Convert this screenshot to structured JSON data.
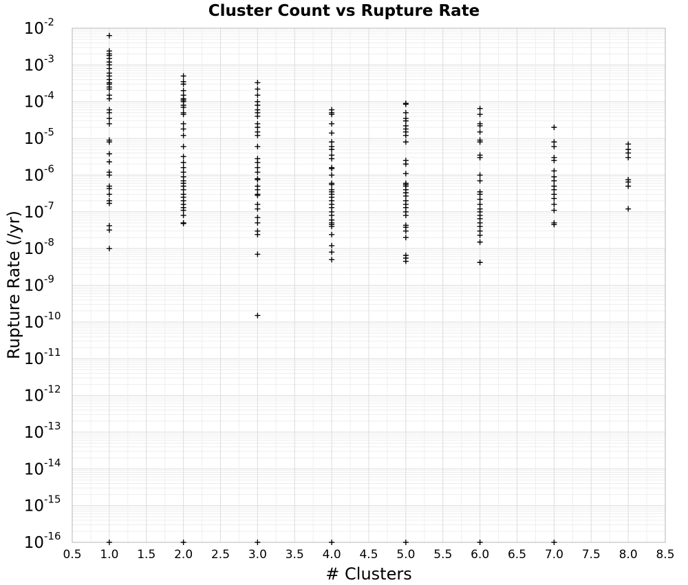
{
  "chart_data": {
    "type": "scatter",
    "title": "Cluster Count vs Rupture Rate",
    "xlabel": "# Clusters",
    "ylabel": "Rupture Rate (/yr)",
    "xlim": [
      0.5,
      8.5
    ],
    "ylim": [
      1e-16,
      0.01
    ],
    "yscale": "log",
    "grid": true,
    "marker": "+",
    "marker_color": "#000000",
    "x_ticks": [
      "0.5",
      "1.0",
      "1.5",
      "2.0",
      "2.5",
      "3.0",
      "3.5",
      "4.0",
      "4.5",
      "5.0",
      "5.5",
      "6.0",
      "6.5",
      "7.0",
      "7.5",
      "8.0",
      "8.5"
    ],
    "y_tick_base": "10",
    "y_tick_exponents": [
      "-16",
      "-15",
      "-14",
      "-13",
      "-12",
      "-11",
      "-10",
      "-9",
      "-8",
      "-7",
      "-6",
      "-5",
      "-4",
      "-3",
      "-2"
    ],
    "series": [
      {
        "x": 1,
        "values": [
          0.0063,
          0.0024,
          0.002,
          0.0018,
          0.0015,
          0.0012,
          0.001,
          0.0008,
          0.0006,
          0.0005,
          0.0004,
          0.00033,
          0.0003,
          0.00025,
          0.00022,
          0.00015,
          0.00012,
          6e-05,
          5e-05,
          3.5e-05,
          2.5e-05,
          9e-06,
          8e-06,
          3.8e-06,
          2.3e-06,
          1.2e-06,
          1e-06,
          5e-07,
          4.3e-07,
          3e-07,
          2e-07,
          1.7e-07,
          4.2e-08,
          3.2e-08,
          1e-08,
          1e-16
        ]
      },
      {
        "x": 2,
        "values": [
          0.0005,
          0.00035,
          0.0003,
          0.0002,
          0.00015,
          0.00012,
          0.00011,
          0.0001,
          8e-05,
          7e-05,
          5e-05,
          4.5e-05,
          2.5e-05,
          1.8e-05,
          1.2e-05,
          6e-06,
          3.2e-06,
          2.2e-06,
          1.6e-06,
          1.2e-06,
          9e-07,
          7e-07,
          6e-07,
          5e-07,
          4e-07,
          3e-07,
          2.5e-07,
          2e-07,
          1.6e-07,
          1.3e-07,
          1.1e-07,
          8e-08,
          5e-08,
          4.8e-08,
          1e-16
        ]
      },
      {
        "x": 3,
        "values": [
          0.00033,
          0.00022,
          0.00015,
          0.0001,
          8e-05,
          6e-05,
          5e-05,
          4e-05,
          2.5e-05,
          2e-05,
          1.5e-05,
          1.2e-05,
          6e-06,
          2.8e-06,
          2.2e-06,
          1.6e-06,
          1.2e-06,
          8e-07,
          7.5e-07,
          5e-07,
          4e-07,
          3e-07,
          2.8e-07,
          1.6e-07,
          1.2e-07,
          7e-08,
          5e-08,
          3e-08,
          2.4e-08,
          7e-09,
          1.5e-10,
          1e-16
        ]
      },
      {
        "x": 4,
        "values": [
          6e-05,
          5e-05,
          4.5e-05,
          2.5e-05,
          1.4e-05,
          8e-06,
          6e-06,
          5e-06,
          3.5e-06,
          2.8e-06,
          1.6e-06,
          1.5e-06,
          1e-06,
          6e-07,
          5.5e-07,
          4e-07,
          3.5e-07,
          3e-07,
          2.5e-07,
          2e-07,
          1.6e-07,
          1.3e-07,
          1e-07,
          8e-08,
          6e-08,
          5e-08,
          4.5e-08,
          4e-08,
          2.4e-08,
          1.2e-08,
          8e-09,
          5e-09,
          1e-16
        ]
      },
      {
        "x": 5,
        "values": [
          9e-05,
          8.5e-05,
          5e-05,
          3.5e-05,
          3e-05,
          2.2e-05,
          1.8e-05,
          1.5e-05,
          1.2e-05,
          8e-06,
          2.5e-06,
          2e-06,
          1.1e-06,
          6e-07,
          5.5e-07,
          5e-07,
          4e-07,
          3.3e-07,
          2.7e-07,
          2e-07,
          1.6e-07,
          1.3e-07,
          1e-07,
          8e-08,
          4.3e-08,
          3.8e-08,
          3e-08,
          2e-08,
          6.5e-09,
          5.5e-09,
          4.5e-09,
          1e-16
        ]
      },
      {
        "x": 6,
        "values": [
          6.5e-05,
          4.5e-05,
          2.5e-05,
          2.2e-05,
          1.5e-05,
          9e-06,
          8e-06,
          3.5e-06,
          3e-06,
          1e-06,
          7e-07,
          3.5e-07,
          3e-07,
          2.2e-07,
          1.6e-07,
          1.2e-07,
          1e-07,
          8e-08,
          6.5e-08,
          5e-08,
          4e-08,
          3e-08,
          2.3e-08,
          1.5e-08,
          4.2e-09,
          1e-16
        ]
      },
      {
        "x": 7,
        "values": [
          2e-05,
          8e-06,
          6e-06,
          3e-06,
          2.5e-06,
          1.3e-06,
          9e-07,
          7e-07,
          5e-07,
          4e-07,
          3e-07,
          2.3e-07,
          1.6e-07,
          1.1e-07,
          5e-08,
          4.5e-08,
          1e-16
        ]
      },
      {
        "x": 8,
        "values": [
          7e-06,
          5e-06,
          4e-06,
          3e-06,
          7.5e-07,
          6.5e-07,
          5e-07,
          1.2e-07
        ]
      }
    ]
  }
}
